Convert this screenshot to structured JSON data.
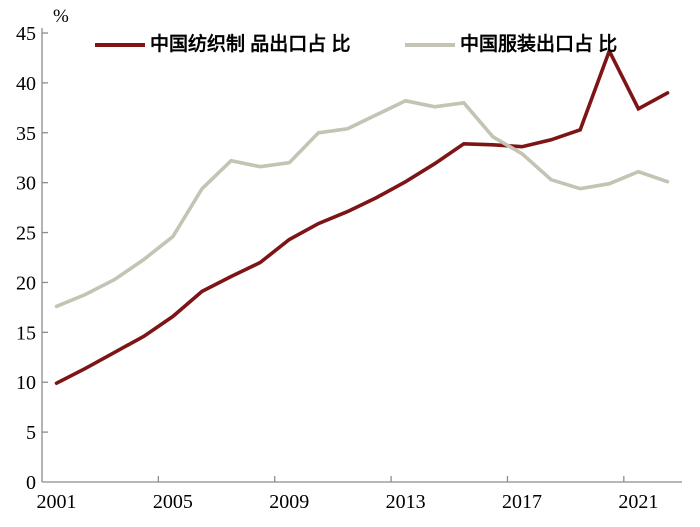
{
  "chart_data": {
    "type": "line",
    "title": "",
    "unit_label": "%",
    "x": [
      2001,
      2002,
      2003,
      2004,
      2005,
      2006,
      2007,
      2008,
      2009,
      2010,
      2011,
      2012,
      2013,
      2014,
      2015,
      2016,
      2017,
      2018,
      2019,
      2020,
      2021,
      2022
    ],
    "x_tick_labels": [
      "2001",
      "2005",
      "2009",
      "2013",
      "2017",
      "2021"
    ],
    "y_ticks": [
      0,
      5,
      10,
      15,
      20,
      25,
      30,
      35,
      40,
      45
    ],
    "ylim": [
      0,
      45
    ],
    "grid": false,
    "legend_position": "top",
    "axis_color": "#8c8c8c",
    "text_color": "#000000",
    "series": [
      {
        "key": "textile-share-line",
        "name": "中国纺织制 品出口占 比",
        "color": "#7d1517",
        "values": [
          9.9,
          11.4,
          13.0,
          14.6,
          16.6,
          19.1,
          20.6,
          22.0,
          24.3,
          25.9,
          27.1,
          28.5,
          30.1,
          31.9,
          33.9,
          33.8,
          33.6,
          34.3,
          35.3,
          43.2,
          37.4,
          39.0
        ]
      },
      {
        "key": "clothing-share-line",
        "name": "中国服装出口占 比",
        "color": "#c4c3b4",
        "values": [
          17.6,
          18.8,
          20.3,
          22.3,
          24.6,
          29.4,
          32.2,
          31.6,
          32.0,
          35.0,
          35.4,
          36.8,
          38.2,
          37.6,
          38.0,
          34.6,
          32.9,
          30.3,
          29.4,
          29.9,
          31.1,
          30.1
        ]
      }
    ]
  }
}
